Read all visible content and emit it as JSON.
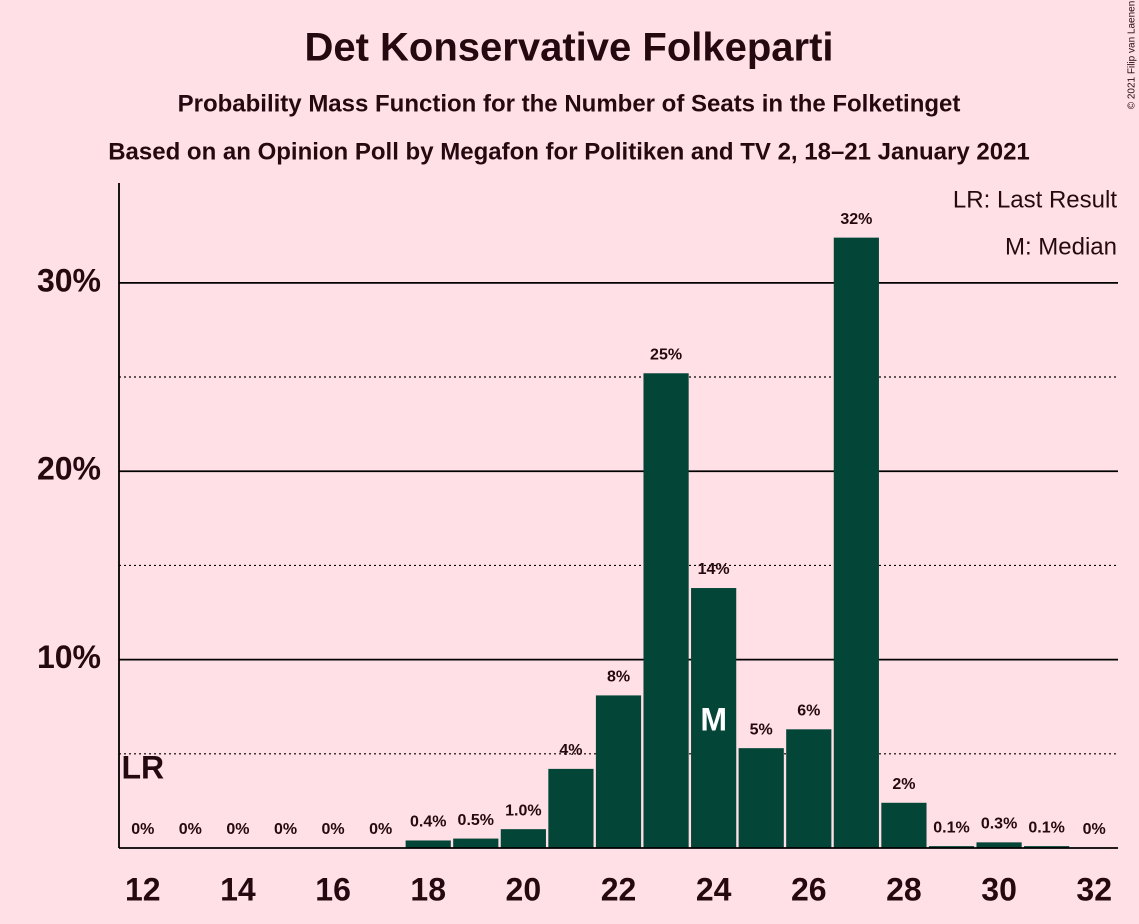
{
  "chart_data": {
    "type": "bar",
    "title": "Det Konservative Folkeparti",
    "subtitle": "Probability Mass Function for the Number of Seats in the Folketinget",
    "caption": "Based on an Opinion Poll by Megafon for Politiken and TV 2, 18–21 January 2021",
    "copyright": "© 2021 Filip van Laenen",
    "x": [
      12,
      13,
      14,
      15,
      16,
      17,
      18,
      19,
      20,
      21,
      22,
      23,
      24,
      25,
      26,
      27,
      28,
      29,
      30,
      31,
      32
    ],
    "values": [
      0,
      0,
      0,
      0,
      0,
      0,
      0.4,
      0.5,
      1.0,
      4.2,
      8.1,
      25.2,
      13.8,
      5.3,
      6.3,
      32.4,
      2.4,
      0.1,
      0.3,
      0.1,
      0
    ],
    "value_labels": [
      "0%",
      "0%",
      "0%",
      "0%",
      "0%",
      "0%",
      "0.4%",
      "0.5%",
      "1.0%",
      "4%",
      "8%",
      "25%",
      "14%",
      "5%",
      "6%",
      "32%",
      "2%",
      "0.1%",
      "0.3%",
      "0.1%",
      "0%"
    ],
    "color": "#034638",
    "xlim": [
      11.5,
      32.5
    ],
    "xticks": [
      12,
      14,
      16,
      18,
      20,
      22,
      24,
      26,
      28,
      30,
      32
    ],
    "ylim": [
      0,
      35.3
    ],
    "yticks": [
      {
        "value": 10,
        "label": "10%"
      },
      {
        "value": 20,
        "label": "20%"
      },
      {
        "value": 30,
        "label": "30%"
      }
    ],
    "minor_grid": [
      5,
      15,
      25
    ],
    "annotations": [
      {
        "text": "LR",
        "x": 12
      },
      {
        "text": "M",
        "x": 24
      }
    ],
    "legend": [
      "LR: Last Result",
      "M: Median"
    ]
  }
}
